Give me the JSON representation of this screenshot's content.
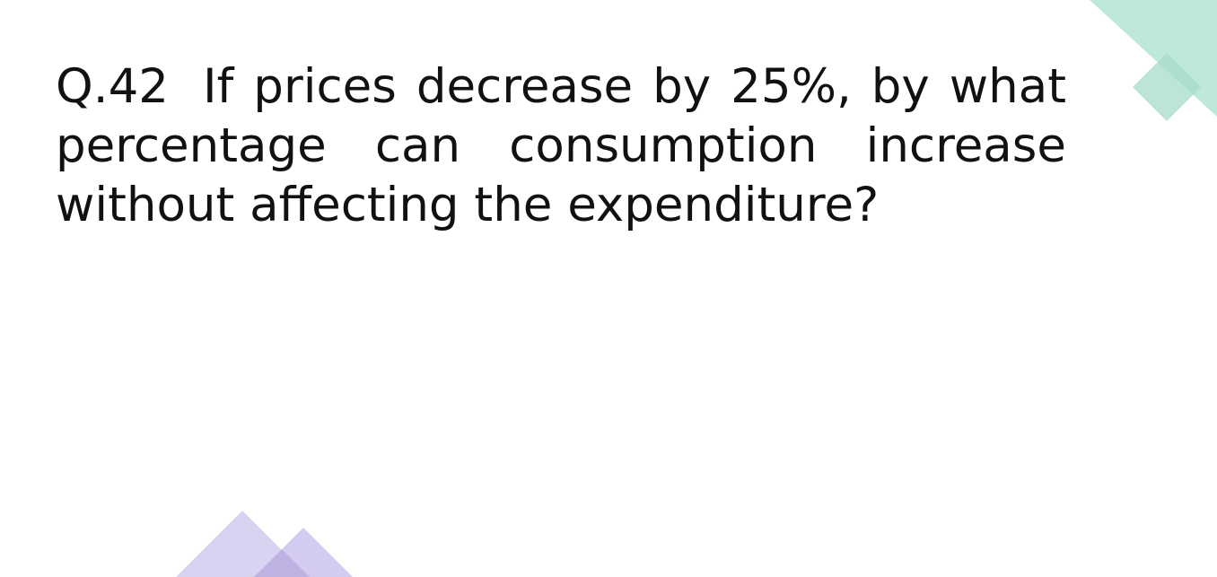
{
  "slide": {
    "question_number": "Q.42",
    "question_text": "If prices decrease by 25%, by what percentage can consumption increase without affecting the expenditure?"
  },
  "colors": {
    "background": "#ffffff",
    "text": "#111111",
    "teal_accent": "#b9e6d9",
    "teal_accent_dark": "#8fd3c0",
    "purple_accent": "#d6d0f0",
    "purple_accent_dark": "#b3a7e3"
  }
}
